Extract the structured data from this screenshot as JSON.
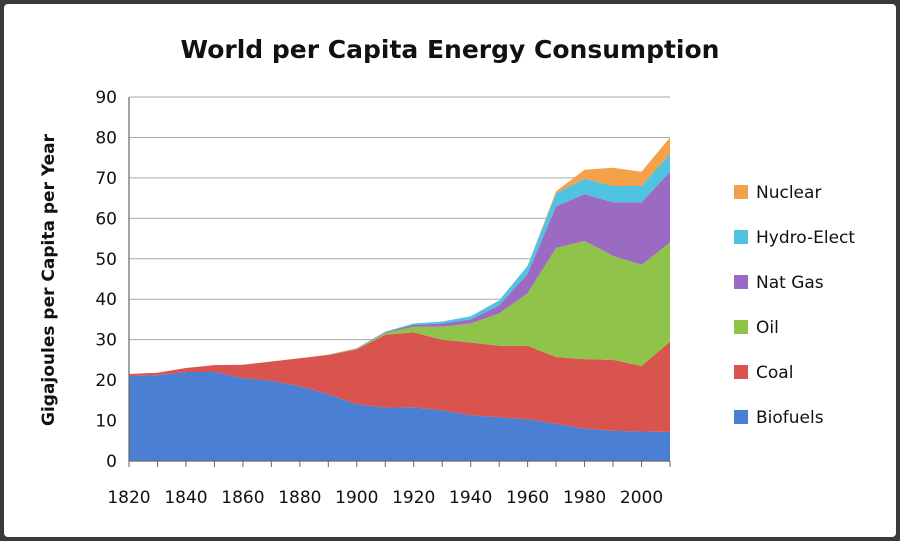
{
  "chart_data": {
    "type": "area",
    "stacked": true,
    "title": "World per Capita Energy Consumption",
    "xlabel": "",
    "ylabel": "Gigajoules per Capita per Year",
    "x": [
      1820,
      1830,
      1840,
      1850,
      1860,
      1870,
      1880,
      1890,
      1900,
      1910,
      1920,
      1930,
      1940,
      1950,
      1960,
      1970,
      1980,
      1990,
      2000,
      2010
    ],
    "xticks": [
      "1820",
      "1840",
      "1860",
      "1880",
      "1900",
      "1920",
      "1940",
      "1960",
      "1980",
      "2000"
    ],
    "xlim": [
      1820,
      2010
    ],
    "ylim": [
      0,
      90
    ],
    "yticks": [
      "0",
      "10",
      "20",
      "30",
      "40",
      "50",
      "60",
      "70",
      "80",
      "90"
    ],
    "grid": true,
    "legend_position": "right",
    "series": [
      {
        "name": "Biofuels",
        "color": "#4a7fd4",
        "values": [
          21,
          21.2,
          22,
          22,
          20.5,
          19.8,
          18.5,
          16.5,
          14,
          13.2,
          13.3,
          12.5,
          11.3,
          10.8,
          10.3,
          9.2,
          8.0,
          7.5,
          7.3,
          7.2
        ]
      },
      {
        "name": "Coal",
        "color": "#d9534f",
        "values": [
          0.5,
          0.6,
          1.0,
          1.7,
          3.3,
          4.8,
          6.9,
          9.7,
          13.6,
          18.0,
          18.5,
          17.5,
          18.0,
          17.7,
          18.2,
          16.5,
          17.2,
          17.5,
          16.2,
          22.3
        ]
      },
      {
        "name": "Oil",
        "color": "#8fc34a",
        "values": [
          0,
          0,
          0,
          0,
          0,
          0,
          0,
          0.1,
          0.2,
          0.5,
          1.4,
          3.2,
          4.7,
          8.0,
          13.0,
          27.0,
          29.2,
          25.7,
          25.0,
          24.5
        ]
      },
      {
        "name": "Nat Gas",
        "color": "#9b6bc4",
        "values": [
          0,
          0,
          0,
          0,
          0,
          0,
          0,
          0,
          0.1,
          0.2,
          0.5,
          0.8,
          1.0,
          2.0,
          4.8,
          10.3,
          11.6,
          13.3,
          15.5,
          17.5
        ]
      },
      {
        "name": "Hydro-Elect",
        "color": "#4fc3e0",
        "values": [
          0,
          0,
          0,
          0,
          0,
          0,
          0,
          0,
          0,
          0.1,
          0.3,
          0.5,
          0.8,
          1.2,
          2.0,
          3.2,
          3.8,
          4.0,
          4.0,
          4.5
        ]
      },
      {
        "name": "Nuclear",
        "color": "#f5a04a",
        "values": [
          0,
          0,
          0,
          0,
          0,
          0,
          0,
          0,
          0,
          0,
          0,
          0,
          0,
          0,
          0,
          0.5,
          2.2,
          4.5,
          3.5,
          4.0
        ]
      }
    ]
  }
}
